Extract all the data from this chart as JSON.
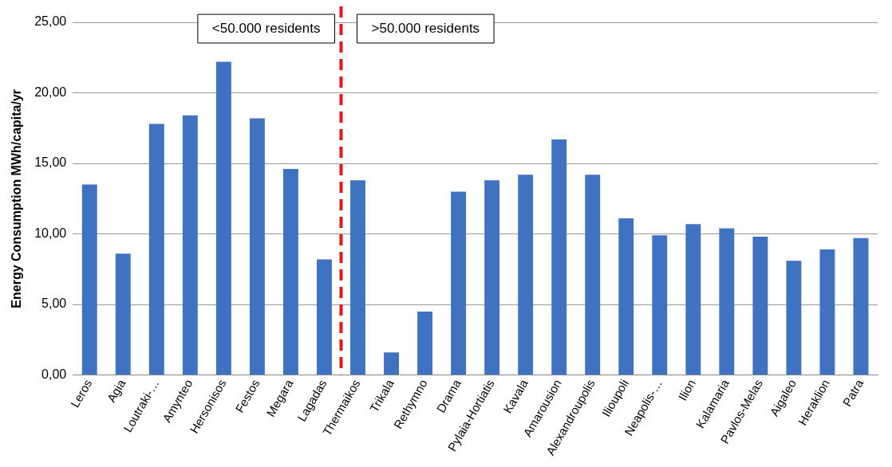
{
  "chart_data": {
    "type": "bar",
    "ylabel": "Energy Consumption MWh/capita/yr",
    "categories": [
      "Leros",
      "Agia",
      "Loutraki-…",
      "Amynteo",
      "Hersonisos",
      "Festos",
      "Megara",
      "Lagadas",
      "Thermaikos",
      "Trikala",
      "Rethymno",
      "Drama",
      "Pylaia-Hortiatis",
      "Kavala",
      "Amarousion",
      "Alexandroupolis",
      "Ilioupoli",
      "Neapolis-…",
      "Ilion",
      "Kalamaria",
      "Pavlos-Melas",
      "Aigaleo",
      "Heraklion",
      "Patra"
    ],
    "values": [
      13.5,
      8.6,
      17.8,
      18.4,
      22.2,
      18.2,
      14.6,
      8.2,
      13.8,
      1.6,
      4.5,
      13.0,
      13.8,
      14.2,
      16.7,
      14.2,
      11.1,
      9.9,
      10.7,
      10.4,
      9.8,
      8.1,
      8.9,
      9.7
    ],
    "color": "#3f73c2",
    "ylim": [
      0,
      25
    ],
    "yticks": [
      {
        "value": 0,
        "label": "0,00"
      },
      {
        "value": 5,
        "label": "5,00"
      },
      {
        "value": 10,
        "label": "10,00"
      },
      {
        "value": 15,
        "label": "15,00"
      },
      {
        "value": 20,
        "label": "20,00"
      },
      {
        "value": 25,
        "label": "25,00"
      }
    ],
    "grid": "y",
    "ref_lines": [
      {
        "axis": "x",
        "value": "Thermaikos",
        "color": "#e8141b",
        "line_style": "dashed"
      }
    ],
    "annotations": [
      "<50.000 residents",
      ">50.000 residents"
    ]
  }
}
